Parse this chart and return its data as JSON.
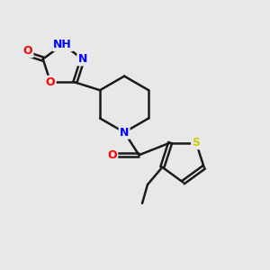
{
  "background_color": "#e8e8e8",
  "bond_color": "#1a1a1a",
  "bond_width": 1.8,
  "atom_colors": {
    "N": "#0000ff",
    "O": "#ff0000",
    "S": "#cccc00",
    "H": "#008080",
    "C": "#1a1a1a"
  },
  "font_size": 9,
  "fig_size": [
    3.0,
    3.0
  ],
  "dpi": 100
}
